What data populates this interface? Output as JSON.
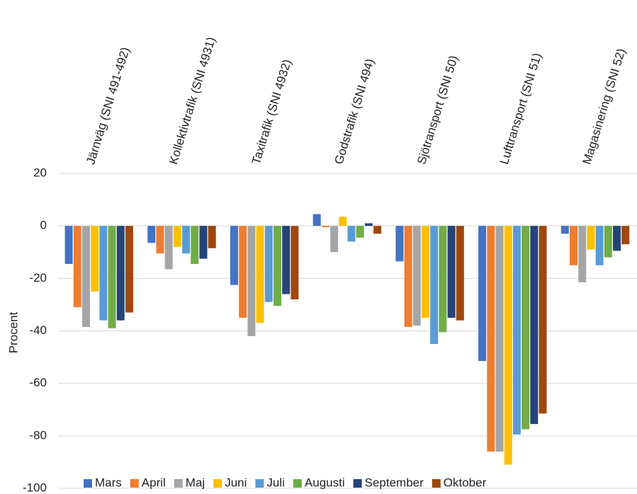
{
  "chart_data": {
    "type": "bar",
    "y_label": "Procent",
    "categories": [
      "Järnväg (SNI 491-492)",
      "Kollektivtrafik (SNI 4931)",
      "Taxitrafik (SNI 4932)",
      "Godstrafik (SNI 494)",
      "Sjötransport (SNI 50)",
      "Lufttransport (SNI 51)",
      "Magasinering (SNI 52)"
    ],
    "series": [
      {
        "name": "Mars",
        "color": "#4472c4",
        "values": [
          -14.5,
          -6.5,
          -22.5,
          4.5,
          -13.5,
          -51.5,
          -3
        ]
      },
      {
        "name": "April",
        "color": "#ed7d31",
        "values": [
          -31,
          -10.5,
          -35,
          -0.5,
          -38.5,
          -86,
          -15
        ]
      },
      {
        "name": "Maj",
        "color": "#a5a5a5",
        "values": [
          -38.5,
          -16.5,
          -42,
          -10,
          -38,
          -86,
          -21.5
        ]
      },
      {
        "name": "Juni",
        "color": "#ffc000",
        "values": [
          -25,
          -8,
          -37,
          3.5,
          -35,
          -91,
          -9
        ]
      },
      {
        "name": "Juli",
        "color": "#5b9bd5",
        "values": [
          -36,
          -10.5,
          -29,
          -6,
          -45,
          -79.5,
          -15
        ]
      },
      {
        "name": "Augusti",
        "color": "#70ad47",
        "values": [
          -39,
          -14.5,
          -30.5,
          -4.5,
          -40.5,
          -77.5,
          -12
        ]
      },
      {
        "name": "September",
        "color": "#264478",
        "values": [
          -36,
          -12.5,
          -26,
          1,
          -35,
          -75.5,
          -9.5
        ]
      },
      {
        "name": "Oktober",
        "color": "#9e480e",
        "values": [
          -33,
          -8.5,
          -28,
          -3,
          -36,
          -71.5,
          -7
        ]
      }
    ],
    "ylim": [
      -100,
      20
    ],
    "yticks": [
      -100,
      -80,
      -60,
      -40,
      -20,
      0,
      20
    ],
    "grid": true,
    "legend": "bottom"
  }
}
